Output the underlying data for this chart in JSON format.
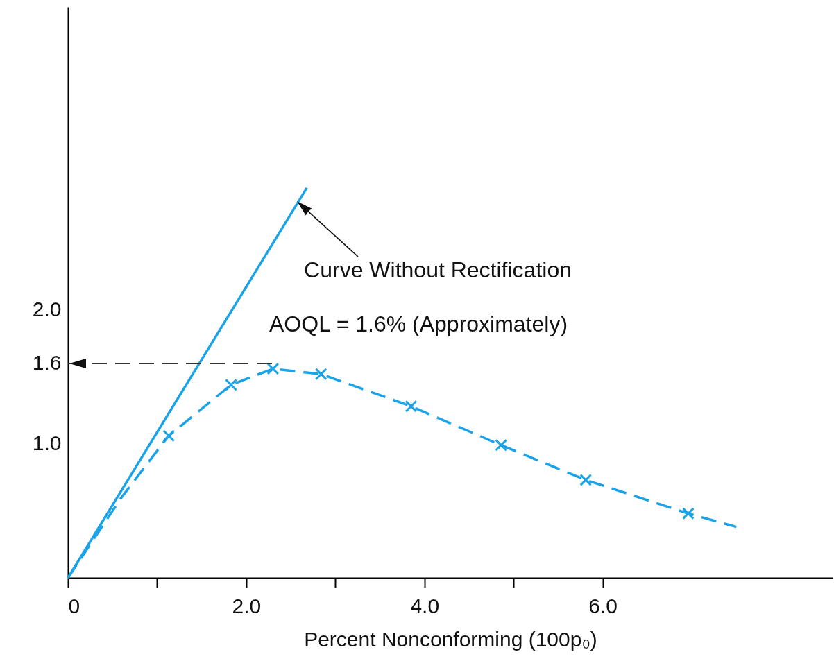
{
  "chart_data": {
    "type": "line",
    "xlabel": "Percent Nonconforming (100p₀)",
    "xlim": [
      0,
      8.58
    ],
    "ylim": [
      0,
      4.26
    ],
    "xticks": [
      {
        "value": 0,
        "label": "0"
      },
      {
        "value": 1,
        "label": null
      },
      {
        "value": 2,
        "label": "2.0"
      },
      {
        "value": 3,
        "label": null
      },
      {
        "value": 4,
        "label": "4.0"
      },
      {
        "value": 5,
        "label": null
      },
      {
        "value": 6,
        "label": "6.0"
      }
    ],
    "yticks": [
      {
        "value": 1,
        "label": "1.0"
      },
      {
        "value": 1.6,
        "label": "1.6"
      },
      {
        "value": 2,
        "label": "2.0"
      }
    ],
    "grid": false,
    "series": [
      {
        "type": "line",
        "color": "#1aa3e8",
        "line_style": "solid",
        "marker": "none",
        "x": [
          0,
          2.68
        ],
        "values": [
          0,
          2.91
        ]
      },
      {
        "type": "line",
        "color": "#1aa3e8",
        "line_style": "dashed",
        "marker": "none",
        "x": [
          0,
          0.6,
          1.13,
          1.83,
          2.3,
          2.84,
          3.85,
          4.86,
          5.81,
          6.96,
          7.5
        ],
        "values": [
          0,
          0.6,
          1.06,
          1.44,
          1.56,
          1.52,
          1.28,
          0.99,
          0.73,
          0.48,
          0.38
        ]
      },
      {
        "type": "scatter",
        "color": "#1aa3e8",
        "marker": "cross",
        "x": [
          1.13,
          1.83,
          2.3,
          2.84,
          3.85,
          4.86,
          5.81,
          6.96
        ],
        "values": [
          1.06,
          1.44,
          1.56,
          1.52,
          1.28,
          0.99,
          0.73,
          0.48
        ]
      }
    ],
    "ref_lines": [
      {
        "axis": "y",
        "value": 1.6,
        "line_style": "dashed",
        "color": "#333333"
      }
    ],
    "annotations": [
      {
        "text": "Curve Without Rectification",
        "x": 2.57,
        "y": 2.81
      },
      "AOQL = 1.6% (Approximately)"
    ]
  }
}
